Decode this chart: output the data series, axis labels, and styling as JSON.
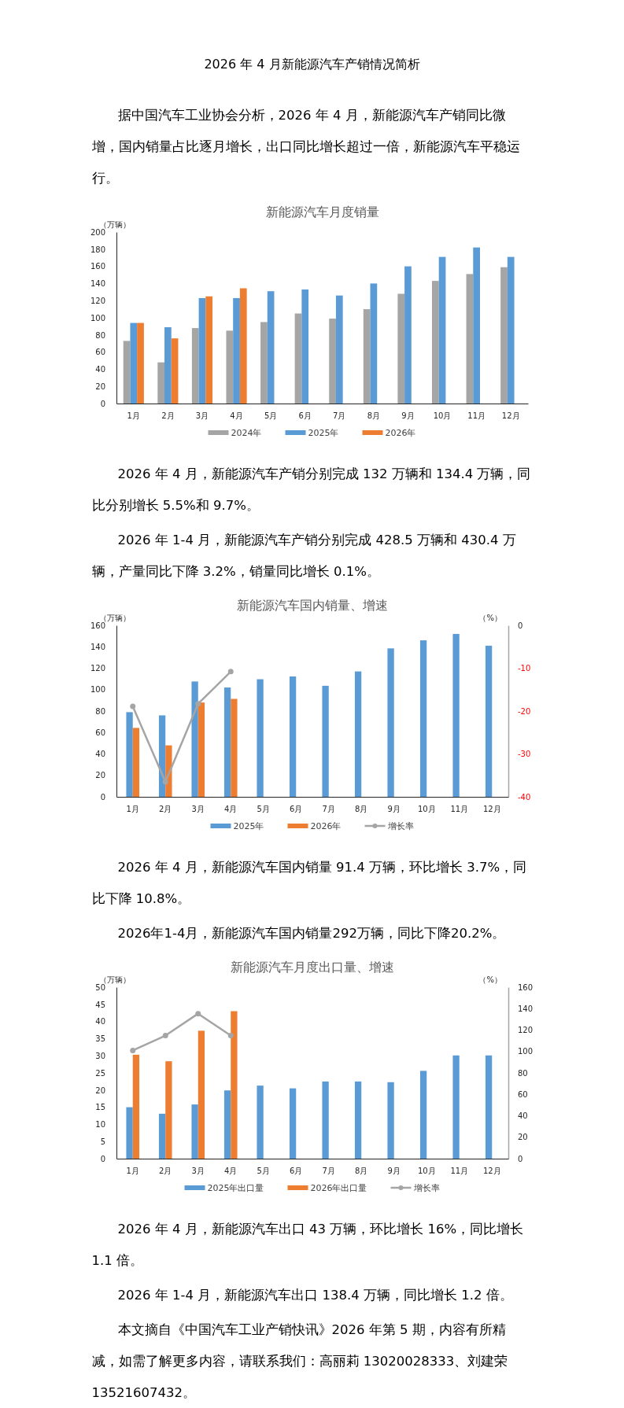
{
  "chart_data": [
    {
      "type": "bar",
      "title": "新能源汽车月度销量",
      "ylabel": "（万辆）",
      "categories": [
        "1月",
        "2月",
        "3月",
        "4月",
        "5月",
        "6月",
        "7月",
        "8月",
        "9月",
        "10月",
        "11月",
        "12月"
      ],
      "series": [
        {
          "name": "2024年",
          "color": "#a5a5a5",
          "values": [
            73,
            48,
            88,
            85,
            95,
            105,
            99,
            110,
            128,
            143,
            151,
            159
          ]
        },
        {
          "name": "2025年",
          "color": "#5b9bd5",
          "values": [
            94,
            89,
            123,
            123,
            131,
            133,
            126,
            140,
            160,
            171,
            182,
            171
          ]
        },
        {
          "name": "2026年",
          "color": "#ed7d31",
          "values": [
            94,
            76,
            125,
            134.4,
            null,
            null,
            null,
            null,
            null,
            null,
            null,
            null
          ]
        }
      ],
      "ylim": [
        0,
        200
      ],
      "yticks": [
        0,
        20,
        40,
        60,
        80,
        100,
        120,
        140,
        160,
        180,
        200
      ],
      "legend": "bottom",
      "annotations": [
        "2026 年 4 月新能源汽车产销情况简析",
        "据中国汽车工业协会分析，2026 年 4 月，新能源汽车产销同比微增，国内销量占比逐月增长，出口同比增长超过一倍，新能源汽车平稳运行。",
        "2026 年 4 月，新能源汽车产销分别完成 132 万辆和 134.4 万辆，同比分别增长 5.5%和 9.7%。",
        "2026 年 1-4 月，新能源汽车产销分别完成 428.5 万辆和 430.4 万辆，产量同比下降 3.2%，销量同比增长 0.1%。"
      ]
    },
    {
      "type": "bar",
      "title": "新能源汽车国内销量、增速",
      "ylabel": "（万辆）",
      "y2label": "（%）",
      "categories": [
        "1月",
        "2月",
        "3月",
        "4月",
        "5月",
        "6月",
        "7月",
        "8月",
        "9月",
        "10月",
        "11月",
        "12月"
      ],
      "series": [
        {
          "name": "2025年",
          "color": "#5b9bd5",
          "values": [
            79,
            76,
            107.6,
            102,
            109.7,
            112.3,
            103.6,
            117,
            138.5,
            146,
            152,
            141
          ]
        },
        {
          "name": "2026年",
          "color": "#ed7d31",
          "values": [
            64.3,
            48,
            88,
            91.4,
            null,
            null,
            null,
            null,
            null,
            null,
            null,
            null
          ]
        },
        {
          "name": "增长率",
          "type": "line",
          "axis": "y2",
          "color": "#a5a5a5",
          "values": [
            -18.9,
            -36.5,
            -18.3,
            -10.8,
            null,
            null,
            null,
            null,
            null,
            null,
            null,
            null
          ]
        }
      ],
      "ylim": [
        0,
        160
      ],
      "yticks": [
        0,
        20,
        40,
        60,
        80,
        100,
        120,
        140,
        160
      ],
      "y2lim": [
        -40,
        0
      ],
      "y2ticks": [
        -40,
        -30,
        -20,
        -10,
        0
      ],
      "marker": "circle",
      "legend": "bottom",
      "annotations": [
        "2026 年 4 月，新能源汽车国内销量 91.4 万辆，环比增长 3.7%，同比下降 10.8%。",
        "2026年1-4月，新能源汽车国内销量292万辆，同比下降20.2%。"
      ]
    },
    {
      "type": "bar",
      "title": "新能源汽车月度出口量、增速",
      "ylabel": "（万辆）",
      "y2label": "（%）",
      "categories": [
        "1月",
        "2月",
        "3月",
        "4月",
        "5月",
        "6月",
        "7月",
        "8月",
        "9月",
        "10月",
        "11月",
        "12月"
      ],
      "series": [
        {
          "name": "2025年出口量",
          "color": "#5b9bd5",
          "values": [
            15,
            13.1,
            15.8,
            19.9,
            21.3,
            20.5,
            22.5,
            22.5,
            22.3,
            25.6,
            30.1,
            30.1
          ]
        },
        {
          "name": "2026年出口量",
          "color": "#ed7d31",
          "values": [
            30.3,
            28.4,
            37.3,
            43,
            null,
            null,
            null,
            null,
            null,
            null,
            null,
            null
          ]
        },
        {
          "name": "增长率",
          "type": "line",
          "axis": "y2",
          "color": "#a5a5a5",
          "values": [
            101,
            114.8,
            135.3,
            114.8,
            null,
            null,
            null,
            null,
            null,
            null,
            null,
            null
          ]
        }
      ],
      "ylim": [
        0,
        50
      ],
      "yticks": [
        0,
        5,
        10,
        15,
        20,
        25,
        30,
        35,
        40,
        45,
        50
      ],
      "y2lim": [
        0,
        160
      ],
      "y2ticks": [
        0,
        20,
        40,
        60,
        80,
        100,
        120,
        140,
        160
      ],
      "marker": "circle",
      "legend": "bottom",
      "annotations": [
        "2026 年 4 月，新能源汽车出口 43 万辆，环比增长 16%，同比增长 1.1 倍。",
        "2026 年 1-4 月，新能源汽车出口 138.4 万辆，同比增长 1.2 倍。",
        "本文摘自《中国汽车工业产销快讯》2026 年第 5 期，内容有所精减，如需了解更多内容，请联系我们：高丽莉 13020028333、刘建荣 13521607432。"
      ]
    }
  ]
}
